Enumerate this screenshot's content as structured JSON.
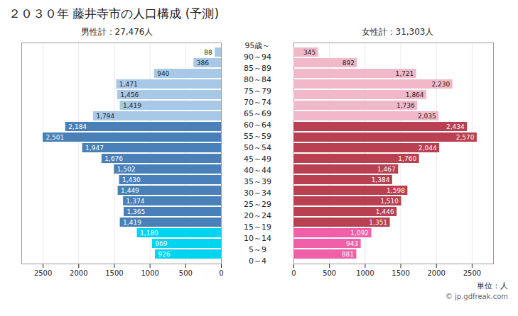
{
  "chart_data": {
    "type": "bar",
    "orientation": "horizontal",
    "title": "２０３０年 藤井寺市の人口構成 (予測)",
    "categories": [
      "0～4",
      "5～9",
      "10～14",
      "15～19",
      "20～24",
      "25～29",
      "30～34",
      "35～39",
      "40～44",
      "45～49",
      "50～54",
      "55～59",
      "60～64",
      "65～69",
      "70～74",
      "75～79",
      "80～84",
      "85～89",
      "90～94",
      "95歳～"
    ],
    "series": [
      {
        "name": "男性計：27,476人",
        "values": [
          926,
          969,
          1180,
          1419,
          1365,
          1374,
          1449,
          1430,
          1502,
          1676,
          1947,
          2501,
          2184,
          1794,
          1419,
          1456,
          1471,
          940,
          386,
          88
        ],
        "value_labels": [
          "926",
          "969",
          "1,180",
          "1,419",
          "1,365",
          "1,374",
          "1,449",
          "1,430",
          "1,502",
          "1,676",
          "1,947",
          "2,501",
          "2,184",
          "1,794",
          "1,419",
          "1,456",
          "1,471",
          "940",
          "386",
          "88"
        ],
        "colors": [
          "#00d4f0",
          "#00d4f0",
          "#00d4f0",
          "#4a80b8",
          "#4a80b8",
          "#4a80b8",
          "#4a80b8",
          "#4a80b8",
          "#4a80b8",
          "#4a80b8",
          "#4a80b8",
          "#4a80b8",
          "#4a80b8",
          "#a8c8e8",
          "#a8c8e8",
          "#a8c8e8",
          "#a8c8e8",
          "#a8c8e8",
          "#a8c8e8",
          "#a8c8e8"
        ]
      },
      {
        "name": "女性計：31,303人",
        "values": [
          881,
          943,
          1092,
          1351,
          1446,
          1510,
          1598,
          1384,
          1467,
          1760,
          2044,
          2570,
          2434,
          2035,
          1736,
          1864,
          2230,
          1721,
          892,
          345
        ],
        "value_labels": [
          "881",
          "943",
          "1,092",
          "1,351",
          "1,446",
          "1,510",
          "1,598",
          "1,384",
          "1,467",
          "1,760",
          "2,044",
          "2,570",
          "2,434",
          "2,035",
          "1,736",
          "1,864",
          "2,230",
          "1,721",
          "892",
          "345"
        ],
        "colors": [
          "#f060a8",
          "#f060a8",
          "#f060a8",
          "#b84050",
          "#b84050",
          "#b84050",
          "#b84050",
          "#b84050",
          "#b84050",
          "#b84050",
          "#b84050",
          "#b84050",
          "#b84050",
          "#f0b8c8",
          "#f0b8c8",
          "#f0b8c8",
          "#f0b8c8",
          "#f0b8c8",
          "#f0b8c8",
          "#f0b8c8"
        ]
      }
    ],
    "xlim": [
      0,
      2800
    ],
    "xticks": [
      0,
      500,
      1000,
      1500,
      2000,
      2500
    ],
    "grid": true,
    "data_labels": true,
    "annotations": [
      "単位：人",
      "© jp.gdfreak.com"
    ]
  }
}
